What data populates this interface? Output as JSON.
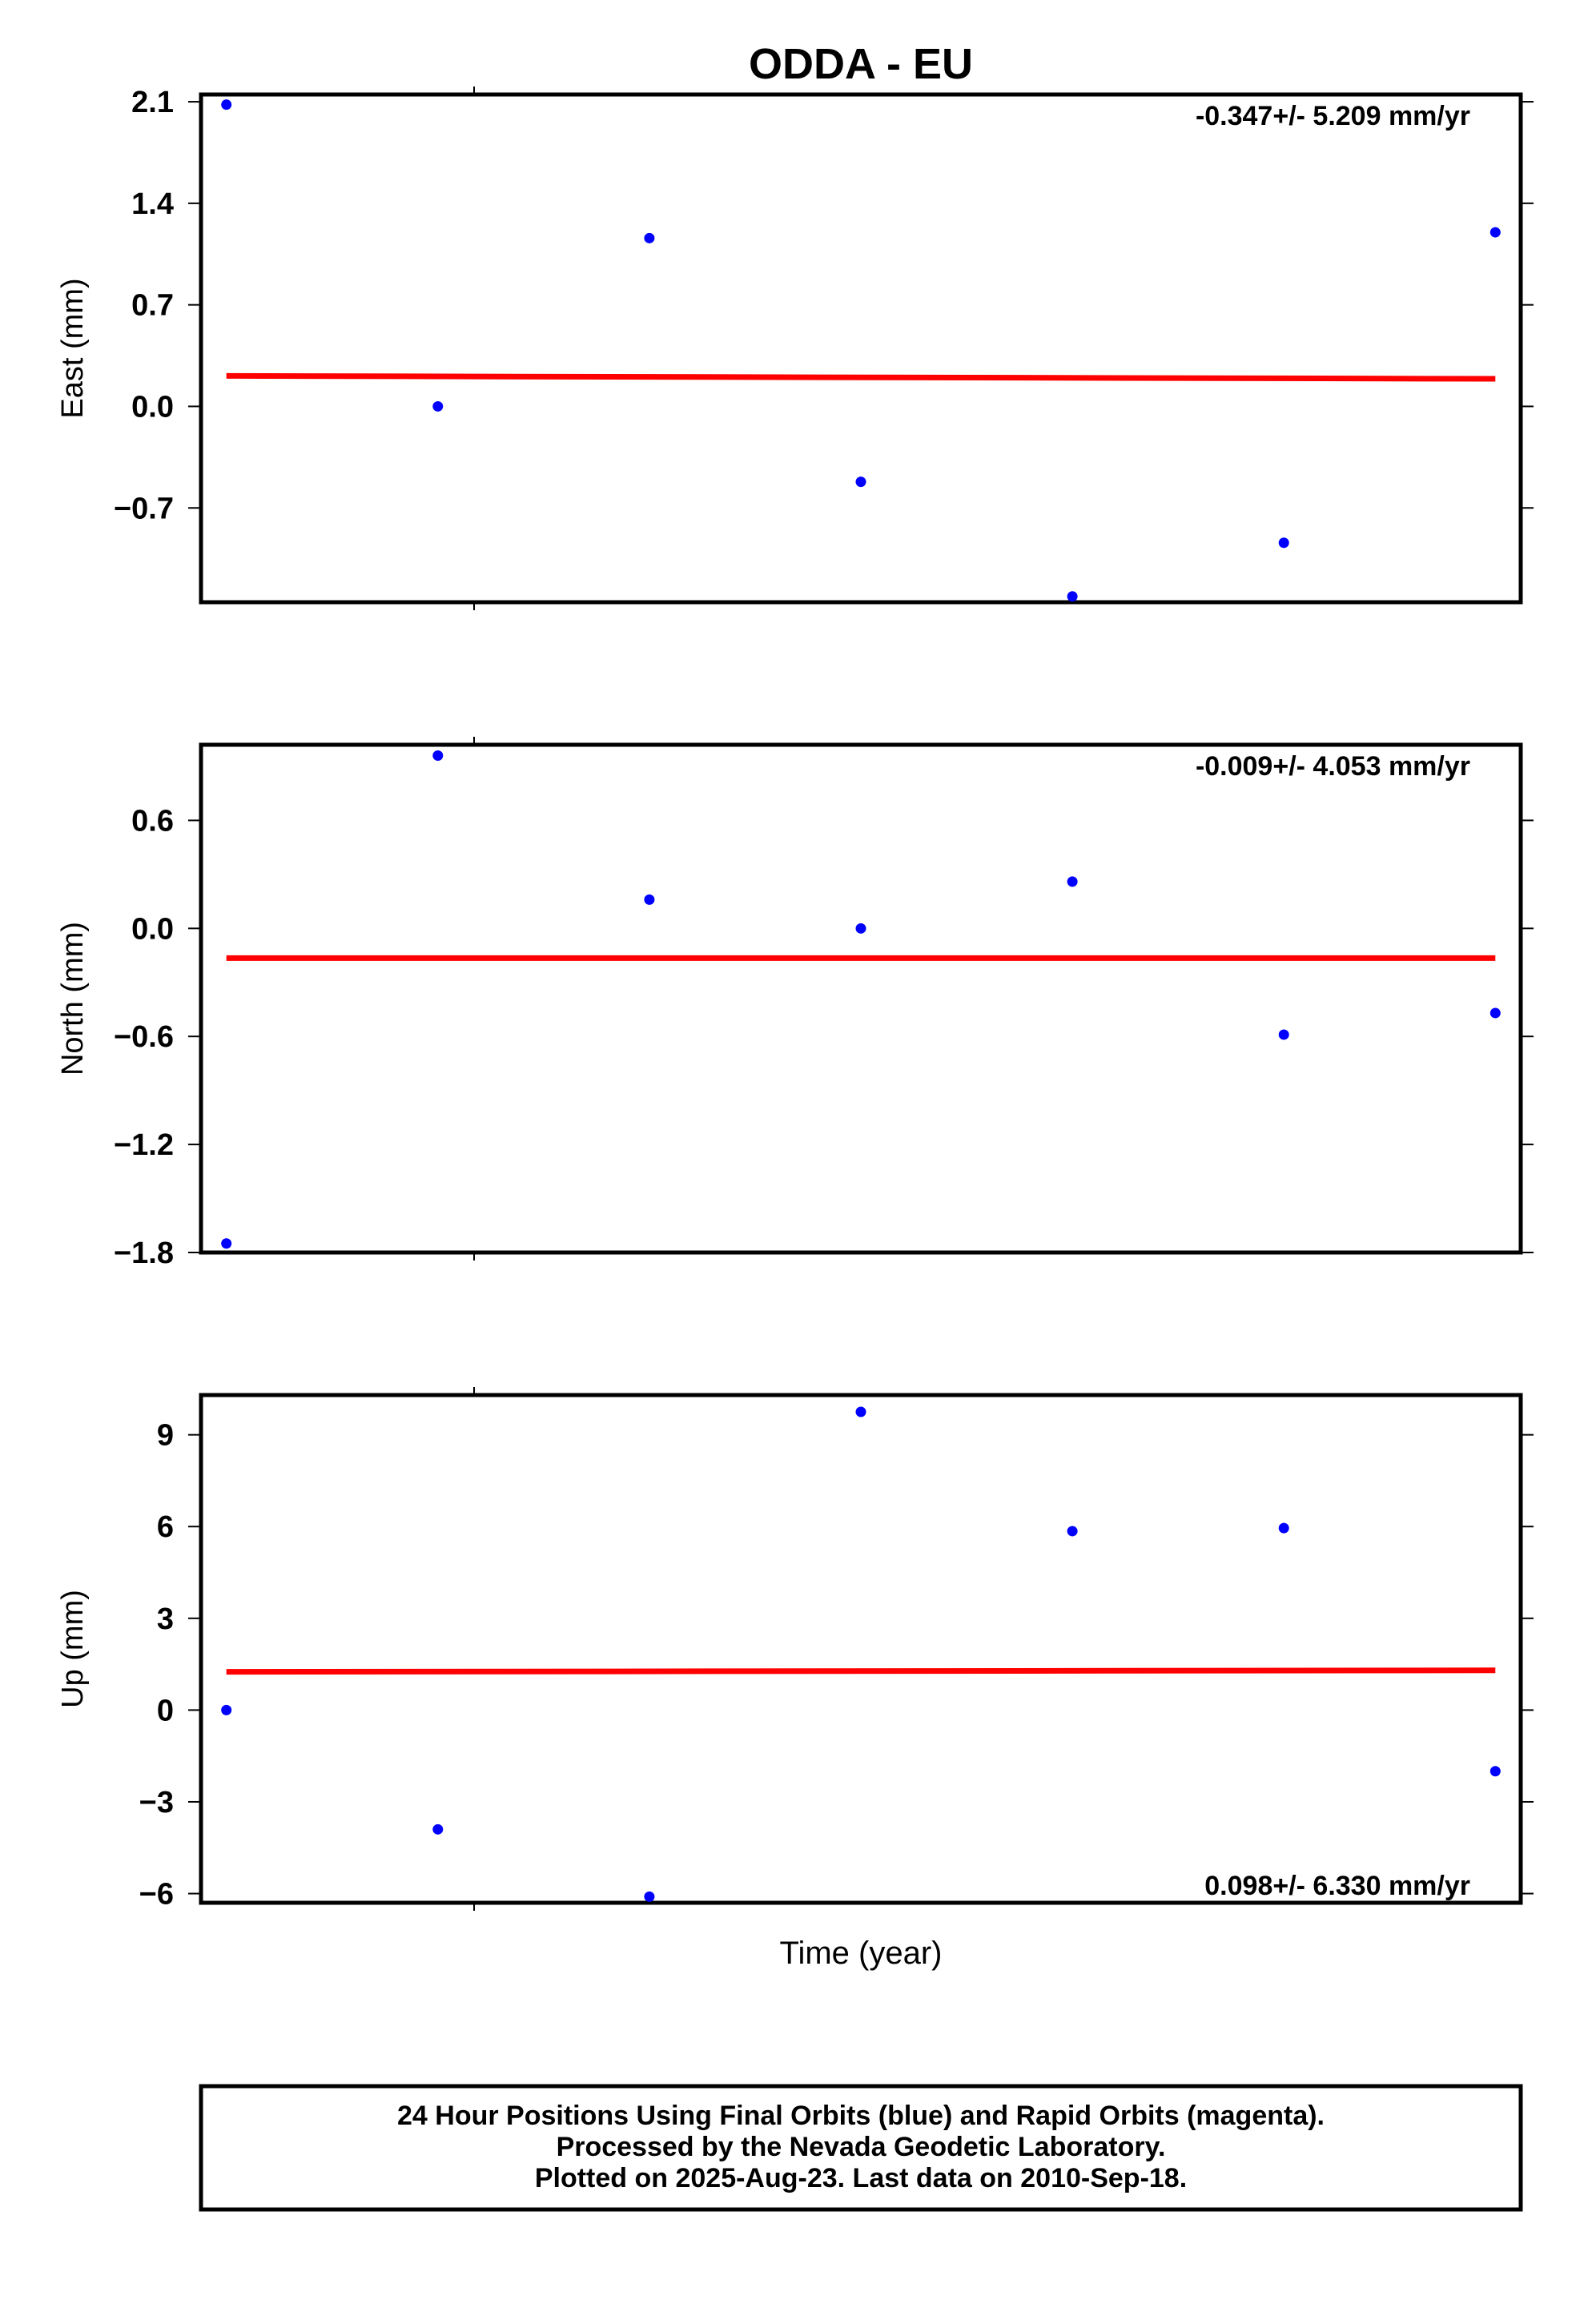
{
  "chart_data": {
    "title": "ODDA - EU",
    "xlabel": "Time (year)",
    "panels": [
      {
        "id": "east",
        "type": "scatter",
        "ylabel": "East (mm)",
        "ylim": [
          -1.35,
          2.15
        ],
        "yticks": [
          "2.1",
          "1.4",
          "0.7",
          "0.0",
          "−0.7"
        ],
        "ytick_values": [
          2.1,
          1.4,
          0.7,
          0.0,
          -0.7
        ],
        "rate": "-0.347+/- 5.209 mm/yr",
        "rate_position": "top-right",
        "points": [
          {
            "x": 1,
            "y": 2.08
          },
          {
            "x": 2,
            "y": 0.0
          },
          {
            "x": 3,
            "y": 1.16
          },
          {
            "x": 4,
            "y": -0.52
          },
          {
            "x": 5,
            "y": -1.31
          },
          {
            "x": 6,
            "y": -0.94
          },
          {
            "x": 7,
            "y": 1.2
          }
        ],
        "trend": {
          "x0": 1,
          "y0": 0.21,
          "x1": 7,
          "y1": 0.19
        }
      },
      {
        "id": "north",
        "type": "scatter",
        "ylabel": "North (mm)",
        "ylim": [
          -1.8,
          1.02
        ],
        "yticks": [
          "0.6",
          "0.0",
          "−0.6",
          "−1.2",
          "−1.8"
        ],
        "ytick_values": [
          0.6,
          0.0,
          -0.6,
          -1.2,
          -1.8
        ],
        "rate": "-0.009+/- 4.053 mm/yr",
        "rate_position": "top-right",
        "points": [
          {
            "x": 1,
            "y": -1.75
          },
          {
            "x": 2,
            "y": 0.96
          },
          {
            "x": 3,
            "y": 0.16
          },
          {
            "x": 4,
            "y": 0.0
          },
          {
            "x": 5,
            "y": 0.26
          },
          {
            "x": 6,
            "y": -0.59
          },
          {
            "x": 7,
            "y": -0.47
          }
        ],
        "trend": {
          "x0": 1,
          "y0": -0.165,
          "x1": 7,
          "y1": -0.165
        }
      },
      {
        "id": "up",
        "type": "scatter",
        "ylabel": "Up (mm)",
        "ylim": [
          -6.3,
          10.3
        ],
        "yticks": [
          "9",
          "6",
          "3",
          "0",
          "−3",
          "−6"
        ],
        "ytick_values": [
          9,
          6,
          3,
          0,
          -3,
          -6
        ],
        "rate": "0.098+/- 6.330 mm/yr",
        "rate_position": "bottom-right",
        "points": [
          {
            "x": 1,
            "y": 0.0
          },
          {
            "x": 2,
            "y": -3.9
          },
          {
            "x": 3,
            "y": -6.1
          },
          {
            "x": 4,
            "y": 9.75
          },
          {
            "x": 5,
            "y": 5.85
          },
          {
            "x": 6,
            "y": 5.95
          },
          {
            "x": 7,
            "y": -2.0
          }
        ],
        "trend": {
          "x0": 1,
          "y0": 1.25,
          "x1": 7,
          "y1": 1.3
        }
      }
    ],
    "x_range": [
      0.88,
      7.12
    ],
    "point_color": "#0000ff",
    "trend_color": "#ff0000",
    "frame_color": "#000000"
  },
  "footer": {
    "line1": "24 Hour Positions Using Final Orbits (blue) and Rapid Orbits (magenta).",
    "line2": "Processed by the Nevada Geodetic Laboratory.",
    "line3": "Plotted on 2025-Aug-23. Last data on 2010-Sep-18."
  }
}
